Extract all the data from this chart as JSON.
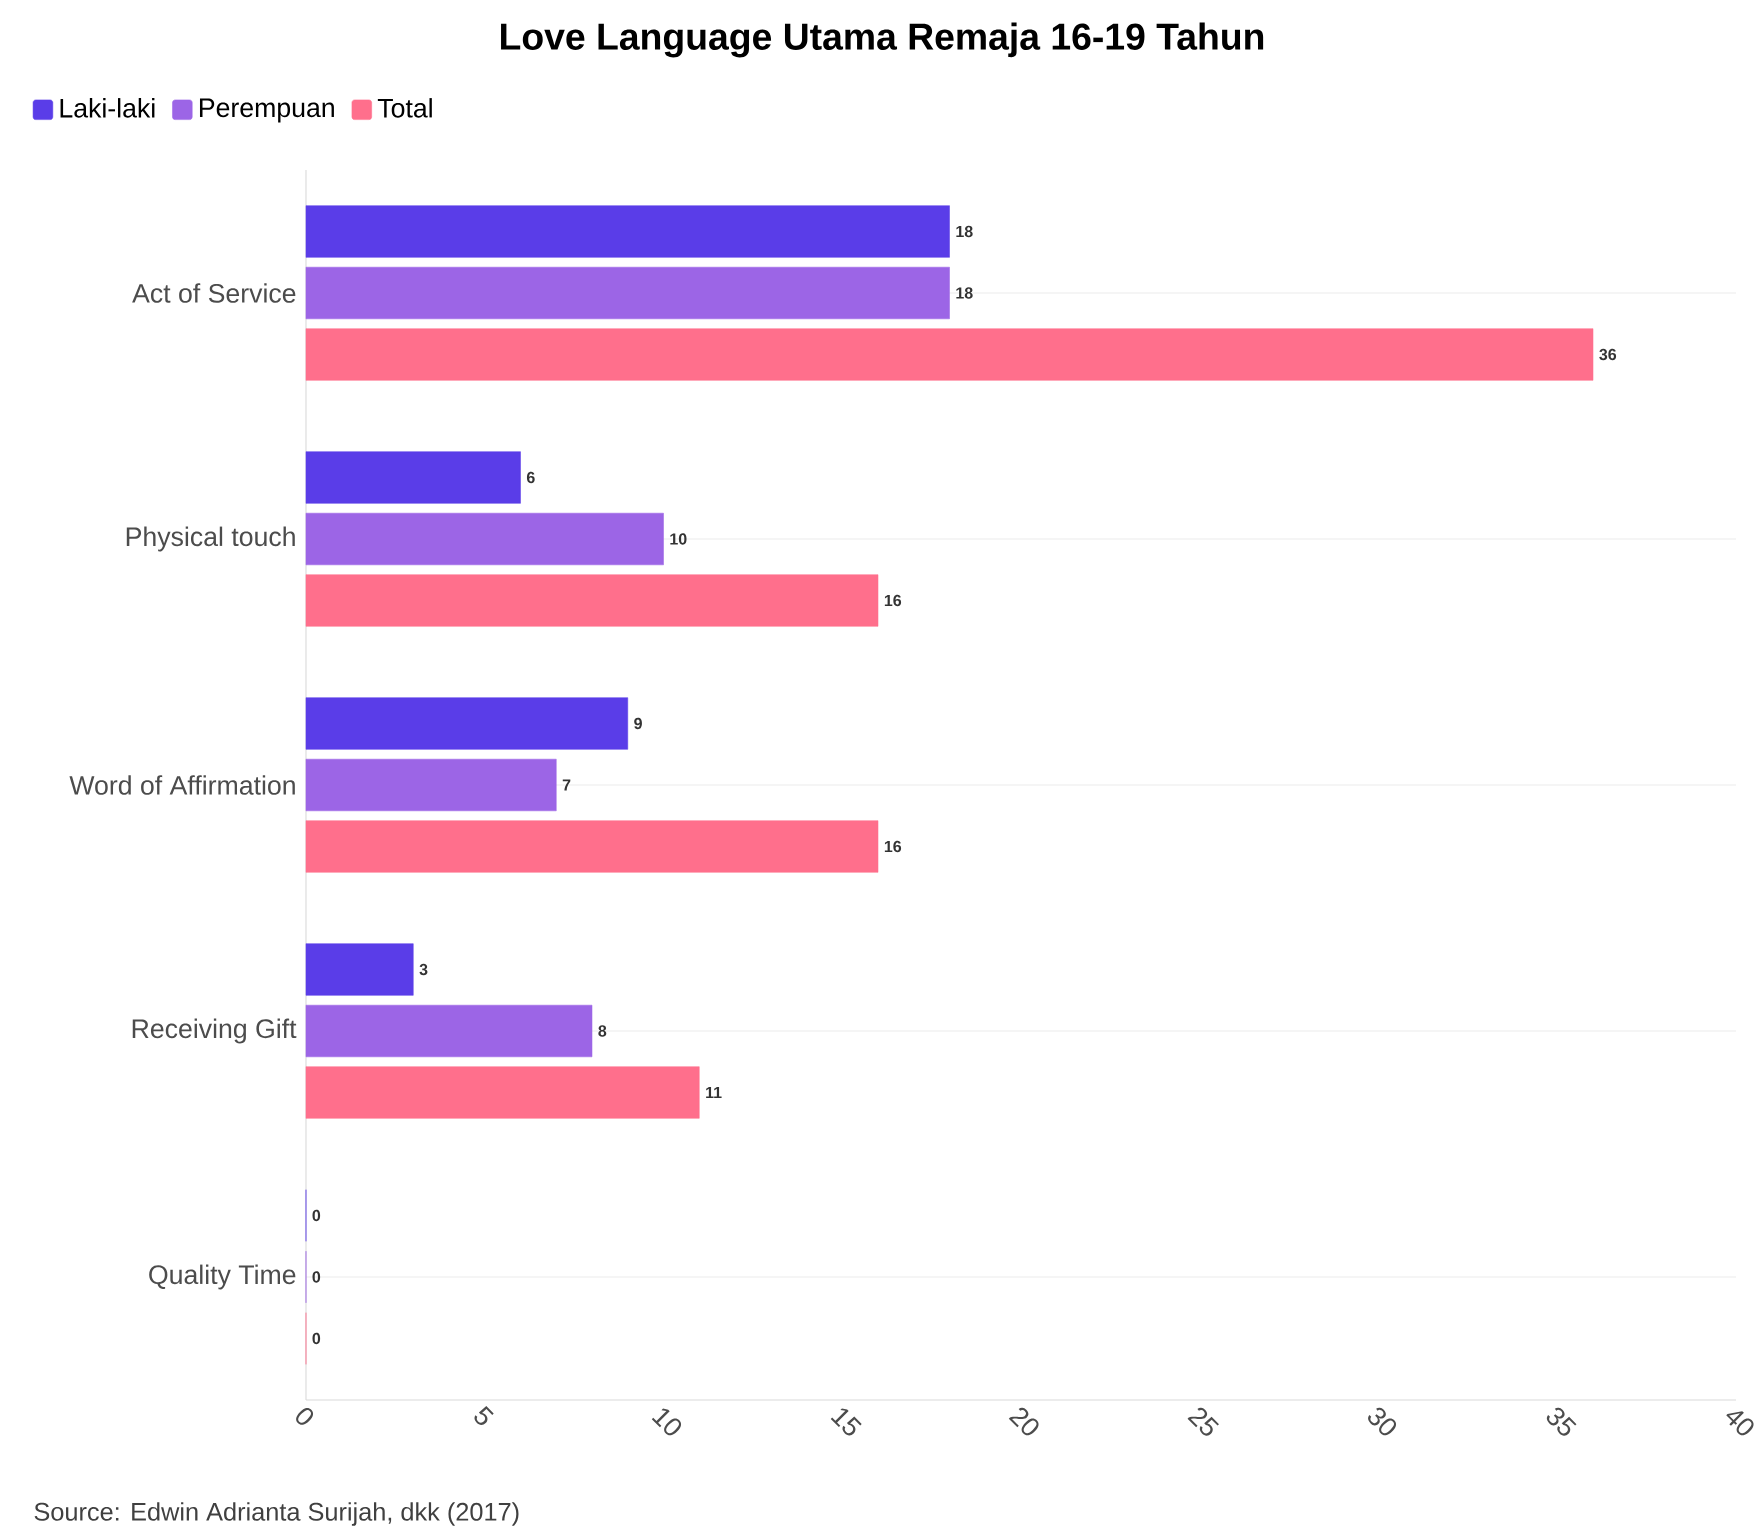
{
  "chart_data": {
    "type": "bar",
    "orientation": "horizontal",
    "title": "Love Language Utama Remaja 16-19 Tahun",
    "categories": [
      "Act of Service",
      "Physical touch",
      "Word of Affirmation",
      "Receiving Gift",
      "Quality Time"
    ],
    "series": [
      {
        "name": "Laki-laki",
        "color": "#5a3de8",
        "values": [
          18,
          6,
          9,
          3,
          0
        ],
        "value_labels": [
          "18",
          "6",
          "9",
          "3",
          "0"
        ]
      },
      {
        "name": "Perempuan",
        "color": "#9c65e6",
        "values": [
          18,
          10,
          7,
          8,
          0
        ],
        "value_labels": [
          "18",
          "10",
          "7",
          "8",
          "0"
        ]
      },
      {
        "name": "Total",
        "color": "#ff6f8c",
        "values": [
          36,
          16,
          16,
          11,
          0
        ],
        "value_labels": [
          "36",
          "16",
          "16",
          "11",
          "0"
        ]
      }
    ],
    "xlim": [
      0,
      40
    ],
    "xticks": [
      0,
      5,
      10,
      15,
      20,
      25,
      30,
      35,
      40
    ],
    "grid": "y",
    "legend": "top left",
    "annotations": [
      "Source: Edwin Adrianta Surijah, dkk (2017)"
    ]
  }
}
